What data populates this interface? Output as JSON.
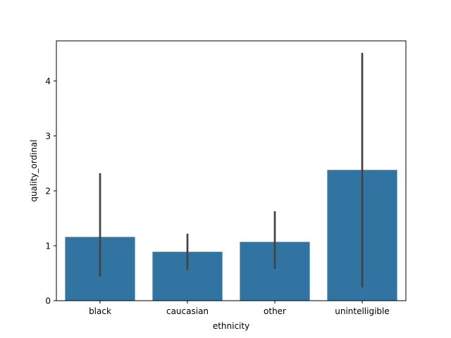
{
  "chart_data": {
    "type": "bar",
    "title": "",
    "xlabel": "ethnicity",
    "ylabel": "quality_ordinal",
    "categories": [
      "black",
      "caucasian",
      "other",
      "unintelligible"
    ],
    "values": [
      1.16,
      0.89,
      1.07,
      2.38
    ],
    "error_low": [
      0.44,
      0.56,
      0.58,
      0.24
    ],
    "error_high": [
      2.32,
      1.22,
      1.63,
      4.51
    ],
    "ylim": [
      0,
      4.73
    ],
    "yticks": [
      0,
      1,
      2,
      3,
      4
    ],
    "grid": false,
    "bar_color": "#3274a1",
    "error_color": "#424242"
  }
}
